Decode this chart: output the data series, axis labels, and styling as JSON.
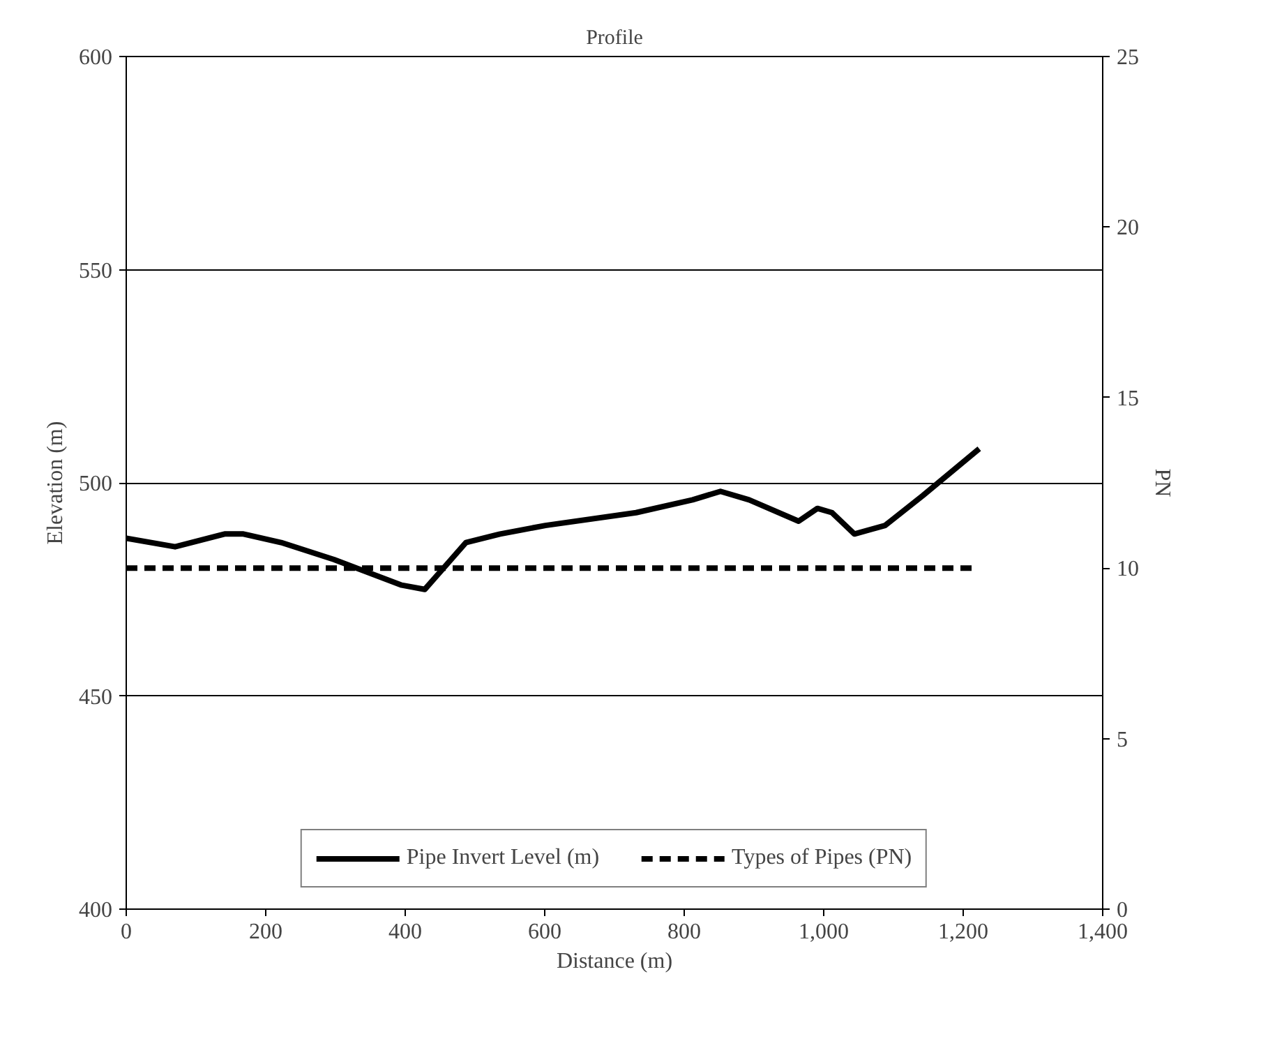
{
  "chart_data": {
    "type": "line",
    "title": "Profile",
    "xlabel": "Distance (m)",
    "ylabel": "Elevation (m)",
    "y2label": "PN",
    "xlim": [
      0,
      1400
    ],
    "xticks": [
      0,
      200,
      400,
      600,
      800,
      {
        "value": 1000,
        "label": "1,000"
      },
      {
        "value": 1200,
        "label": "1,200"
      },
      {
        "value": 1400,
        "label": "1,400"
      }
    ],
    "ylim": [
      400,
      600
    ],
    "yticks": [
      400,
      450,
      500,
      550,
      600
    ],
    "y2lim": [
      0,
      25
    ],
    "y2ticks": [
      0,
      5,
      10,
      15,
      20,
      25
    ],
    "grid": "y",
    "legend": "bottom",
    "marker": "none",
    "series": [
      {
        "name": "Pipe Invert Level (m)",
        "color": "#000000",
        "line_style": "solid",
        "x": [
          0,
          70,
          141,
          168,
          222,
          298,
          395,
          428,
          455,
          487,
          536,
          601,
          731,
          812,
          852,
          893,
          964,
          991,
          1012,
          1044,
          1088,
          1142,
          1223
        ],
        "values": [
          487,
          485,
          488,
          488,
          486,
          482,
          476,
          475,
          480,
          486,
          488,
          490,
          493,
          496,
          498,
          496,
          491,
          494,
          493,
          488,
          490,
          497,
          508
        ]
      },
      {
        "name": "Types of Pipes (PN)",
        "color": "#000000",
        "line_style": "dashed",
        "axis": "y2",
        "x": [
          0,
          1215
        ],
        "values": [
          10,
          10
        ]
      }
    ]
  }
}
